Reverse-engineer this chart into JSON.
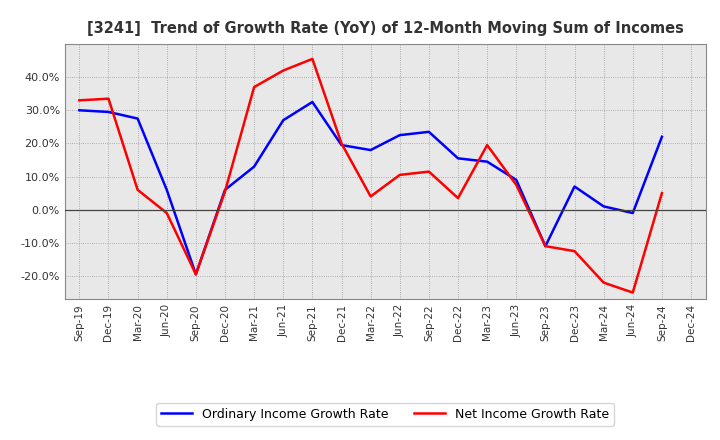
{
  "title": "[3241]  Trend of Growth Rate (YoY) of 12-Month Moving Sum of Incomes",
  "x_labels": [
    "Sep-19",
    "Dec-19",
    "Mar-20",
    "Jun-20",
    "Sep-20",
    "Dec-20",
    "Mar-21",
    "Jun-21",
    "Sep-21",
    "Dec-21",
    "Mar-22",
    "Jun-22",
    "Sep-22",
    "Dec-22",
    "Mar-23",
    "Jun-23",
    "Sep-23",
    "Dec-23",
    "Mar-24",
    "Jun-24",
    "Sep-24",
    "Dec-24"
  ],
  "ordinary_income": [
    0.3,
    0.295,
    0.275,
    0.06,
    -0.195,
    0.06,
    0.13,
    0.27,
    0.325,
    0.195,
    0.18,
    0.225,
    0.235,
    0.155,
    0.145,
    0.09,
    -0.11,
    0.07,
    0.01,
    -0.01,
    0.22,
    null
  ],
  "net_income": [
    0.33,
    0.335,
    0.06,
    -0.01,
    -0.195,
    0.055,
    0.37,
    0.42,
    0.455,
    0.2,
    0.04,
    0.105,
    0.115,
    0.035,
    0.195,
    0.075,
    -0.11,
    -0.125,
    -0.22,
    -0.25,
    0.05,
    null
  ],
  "ylim": [
    -0.27,
    0.5
  ],
  "yticks": [
    -0.2,
    -0.1,
    0.0,
    0.1,
    0.2,
    0.3,
    0.4
  ],
  "ordinary_color": "#0000ff",
  "net_color": "#ff0000",
  "background_color": "#ffffff",
  "plot_bg_color": "#e8e8e8",
  "grid_color": "#999999",
  "legend_ordinary": "Ordinary Income Growth Rate",
  "legend_net": "Net Income Growth Rate",
  "title_color": "#333333"
}
